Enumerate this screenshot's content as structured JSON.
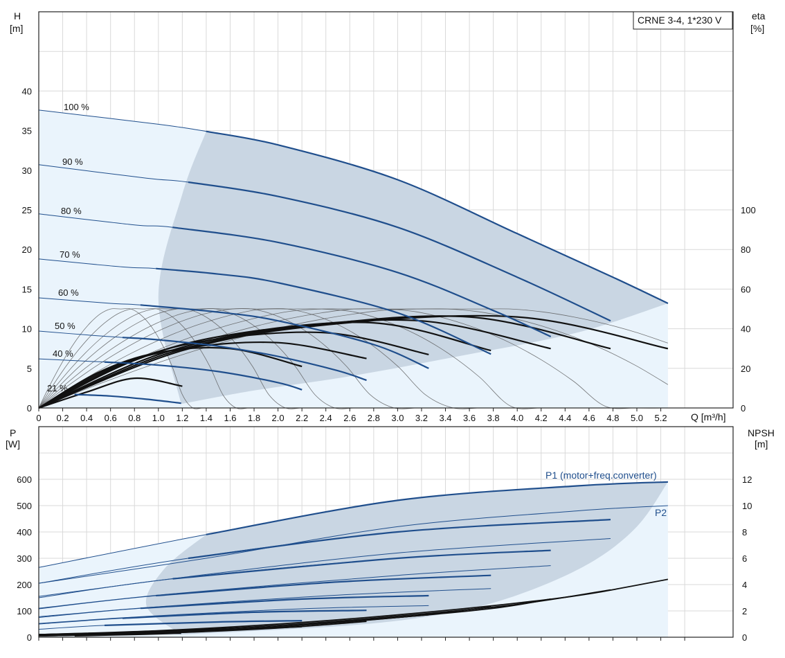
{
  "top_chart": {
    "title_box": "CRNE 3-4, 1*230 V",
    "y_left": {
      "name": "H",
      "unit": "[m]",
      "ticks": [
        "0",
        "5",
        "10",
        "15",
        "20",
        "25",
        "30",
        "35",
        "40"
      ]
    },
    "y_right": {
      "name": "eta",
      "unit": "[%]",
      "ticks": [
        "0",
        "20",
        "40",
        "60",
        "80",
        "100"
      ]
    },
    "x_axis": {
      "label": "Q [m³/h]",
      "ticks": [
        "0",
        "0.2",
        "0.4",
        "0.6",
        "0.8",
        "1.0",
        "1.2",
        "1.4",
        "1.6",
        "1.8",
        "2.0",
        "2.2",
        "2.4",
        "2.6",
        "2.8",
        "3.0",
        "3.2",
        "3.4",
        "3.6",
        "3.8",
        "4.0",
        "4.2",
        "4.4",
        "4.6",
        "4.8",
        "5.0",
        "5.2"
      ]
    },
    "speed_labels": [
      "100 %",
      "90 %",
      "80 %",
      "70 %",
      "60 %",
      "50 %",
      "40 %",
      "21 %"
    ]
  },
  "bottom_chart": {
    "y_left": {
      "name": "P",
      "unit": "[W]",
      "ticks": [
        "0",
        "100",
        "200",
        "300",
        "400",
        "500",
        "600"
      ]
    },
    "y_right": {
      "name": "NPSH",
      "unit": "[m]",
      "ticks": [
        "0",
        "2",
        "4",
        "6",
        "8",
        "10",
        "12"
      ]
    },
    "p1_label": "P1 (motor+freq.converter)",
    "p2_label": "P2"
  },
  "colors": {
    "curve": "#1f4e8c",
    "area_light": "#eaf4fc",
    "area_dark": "#c9d6e3",
    "eta": "#111111",
    "grid": "#d9d9d9"
  },
  "chart_data": [
    {
      "type": "line",
      "title": "CRNE 3-4, 1*230 V",
      "xlabel": "Q [m³/h]",
      "ylabel": "H [m]",
      "y2label": "eta [%]",
      "xlim": [
        0,
        5.4
      ],
      "ylim": [
        0,
        45
      ],
      "y2lim": [
        0,
        140
      ],
      "grid": true,
      "series": [
        {
          "name": "100 %",
          "x": [
            0,
            1.0,
            1.4,
            2.0,
            3.0,
            4.0,
            4.8,
            5.26
          ],
          "y": [
            37.6,
            35.8,
            34.9,
            33.2,
            28.8,
            22.0,
            16.5,
            13.2
          ]
        },
        {
          "name": "90 %",
          "x": [
            0,
            0.9,
            1.25,
            2.0,
            3.0,
            4.0,
            4.78
          ],
          "y": [
            30.7,
            29.0,
            28.5,
            26.7,
            22.8,
            16.5,
            11.0
          ]
        },
        {
          "name": "80 %",
          "x": [
            0,
            0.8,
            1.12,
            2.0,
            3.0,
            3.8,
            4.28
          ],
          "y": [
            24.5,
            23.1,
            22.8,
            20.9,
            17.1,
            12.3,
            9.0
          ]
        },
        {
          "name": "70 %",
          "x": [
            0,
            0.7,
            0.98,
            1.5,
            2.0,
            3.0,
            3.78
          ],
          "y": [
            18.8,
            17.8,
            17.6,
            16.9,
            15.8,
            12.0,
            6.8
          ]
        },
        {
          "name": "60 %",
          "x": [
            0,
            0.6,
            0.85,
            1.5,
            2.0,
            2.8,
            3.26
          ],
          "y": [
            13.9,
            13.2,
            13.0,
            12.1,
            11.0,
            8.0,
            5.0
          ]
        },
        {
          "name": "50 %",
          "x": [
            0,
            0.5,
            0.7,
            1.0,
            1.5,
            2.0,
            2.5,
            2.74
          ],
          "y": [
            9.7,
            9.1,
            8.9,
            8.6,
            7.8,
            6.5,
            4.7,
            3.5
          ]
        },
        {
          "name": "40 %",
          "x": [
            0,
            0.4,
            0.55,
            1.0,
            1.5,
            2.0,
            2.2
          ],
          "y": [
            6.2,
            5.9,
            5.8,
            5.4,
            4.6,
            3.2,
            2.3
          ]
        },
        {
          "name": "21 %",
          "x": [
            0.3,
            0.6,
            0.9,
            1.19
          ],
          "y": [
            1.7,
            1.5,
            1.1,
            0.6
          ]
        }
      ],
      "eta_series": [
        {
          "x": [
            0,
            0.4,
            0.8,
            1.2
          ],
          "y": [
            0,
            8,
            15,
            11
          ]
        },
        {
          "x": [
            0,
            0.5,
            1.0,
            1.6,
            2.2
          ],
          "y": [
            0,
            18,
            28,
            30,
            21
          ]
        },
        {
          "x": [
            0,
            0.6,
            1.2,
            2.0,
            2.74
          ],
          "y": [
            0,
            20,
            30,
            33,
            25
          ]
        },
        {
          "x": [
            0,
            0.7,
            1.4,
            2.4,
            3.26
          ],
          "y": [
            0,
            22,
            34,
            38,
            27
          ]
        },
        {
          "x": [
            0,
            0.8,
            1.6,
            2.8,
            3.78
          ],
          "y": [
            0,
            24,
            37,
            43,
            29
          ]
        },
        {
          "x": [
            0,
            1.0,
            2.0,
            3.2,
            4.28
          ],
          "y": [
            0,
            27,
            40,
            44,
            30
          ]
        },
        {
          "x": [
            0,
            1.1,
            2.2,
            3.6,
            4.78
          ],
          "y": [
            0,
            28,
            41,
            46,
            30
          ]
        },
        {
          "x": [
            0,
            1.2,
            2.4,
            4.0,
            5.26
          ],
          "y": [
            0,
            29,
            42,
            46,
            30
          ]
        }
      ]
    },
    {
      "type": "line",
      "xlabel": "Q [m³/h]",
      "ylabel": "P [W]",
      "y2label": "NPSH [m]",
      "xlim": [
        0,
        5.4
      ],
      "ylim": [
        0,
        700
      ],
      "y2lim": [
        0,
        14
      ],
      "grid": true,
      "p1_series": [
        {
          "name": "P1 (motor+freq.converter)",
          "x": [
            0,
            1.4,
            3.0,
            4.5,
            5.26
          ],
          "y": [
            265,
            390,
            520,
            575,
            590
          ]
        },
        {
          "x": [
            0,
            1.25,
            3.0,
            4.78
          ],
          "y": [
            205,
            300,
            400,
            447
          ]
        },
        {
          "x": [
            0,
            1.12,
            3.0,
            4.28
          ],
          "y": [
            150,
            222,
            300,
            330
          ]
        },
        {
          "x": [
            0,
            0.98,
            2.5,
            3.78
          ],
          "y": [
            108,
            158,
            210,
            235
          ]
        },
        {
          "x": [
            0,
            0.85,
            2.2,
            3.26
          ],
          "y": [
            75,
            110,
            145,
            158
          ]
        },
        {
          "x": [
            0,
            0.7,
            1.8,
            2.74
          ],
          "y": [
            50,
            72,
            95,
            102
          ]
        },
        {
          "x": [
            0,
            0.55,
            1.5,
            2.2
          ],
          "y": [
            30,
            45,
            58,
            63
          ]
        },
        {
          "x": [
            0.3,
            0.8,
            1.19
          ],
          "y": [
            12,
            14,
            15
          ]
        }
      ],
      "p2_series": [
        {
          "name": "P2",
          "x": [
            0,
            1.4,
            3.0,
            4.5,
            5.26
          ],
          "y": [
            205,
            300,
            420,
            480,
            500
          ]
        },
        {
          "x": [
            0,
            1.25,
            3.0,
            4.78
          ],
          "y": [
            155,
            230,
            320,
            375
          ]
        },
        {
          "x": [
            0,
            1.12,
            3.0,
            4.28
          ],
          "y": [
            110,
            165,
            235,
            272
          ]
        },
        {
          "x": [
            0,
            0.98,
            2.5,
            3.78
          ],
          "y": [
            78,
            115,
            160,
            185
          ]
        },
        {
          "x": [
            0,
            0.85,
            2.2,
            3.26
          ],
          "y": [
            52,
            78,
            108,
            120
          ]
        }
      ],
      "npsh_series": [
        {
          "x": [
            0,
            1.0,
            2.0,
            3.0,
            4.0,
            4.6,
            5.26
          ],
          "y": [
            0.2,
            0.5,
            1.0,
            1.7,
            2.6,
            3.3,
            4.4
          ]
        },
        {
          "x": [
            0,
            1.0,
            2.0,
            3.0,
            4.0,
            4.78
          ],
          "y": [
            0.2,
            0.45,
            0.9,
            1.6,
            2.5,
            3.6
          ]
        },
        {
          "x": [
            0,
            1.0,
            2.0,
            3.0,
            3.8,
            4.28
          ],
          "y": [
            0.2,
            0.4,
            0.8,
            1.5,
            2.2,
            2.9
          ]
        },
        {
          "x": [
            0,
            1.0,
            2.0,
            3.0,
            3.78
          ],
          "y": [
            0.2,
            0.35,
            0.8,
            1.5,
            2.3
          ]
        },
        {
          "x": [
            0,
            1.0,
            2.0,
            3.26
          ],
          "y": [
            0.2,
            0.35,
            0.8,
            1.7
          ]
        },
        {
          "x": [
            0,
            1.0,
            2.0,
            2.74
          ],
          "y": [
            0.1,
            0.3,
            0.7,
            1.2
          ]
        },
        {
          "x": [
            0,
            1.0,
            2.2
          ],
          "y": [
            0.1,
            0.3,
            0.8
          ]
        },
        {
          "x": [
            0.3,
            0.8,
            1.19
          ],
          "y": [
            0.1,
            0.2,
            0.3
          ]
        }
      ]
    }
  ]
}
